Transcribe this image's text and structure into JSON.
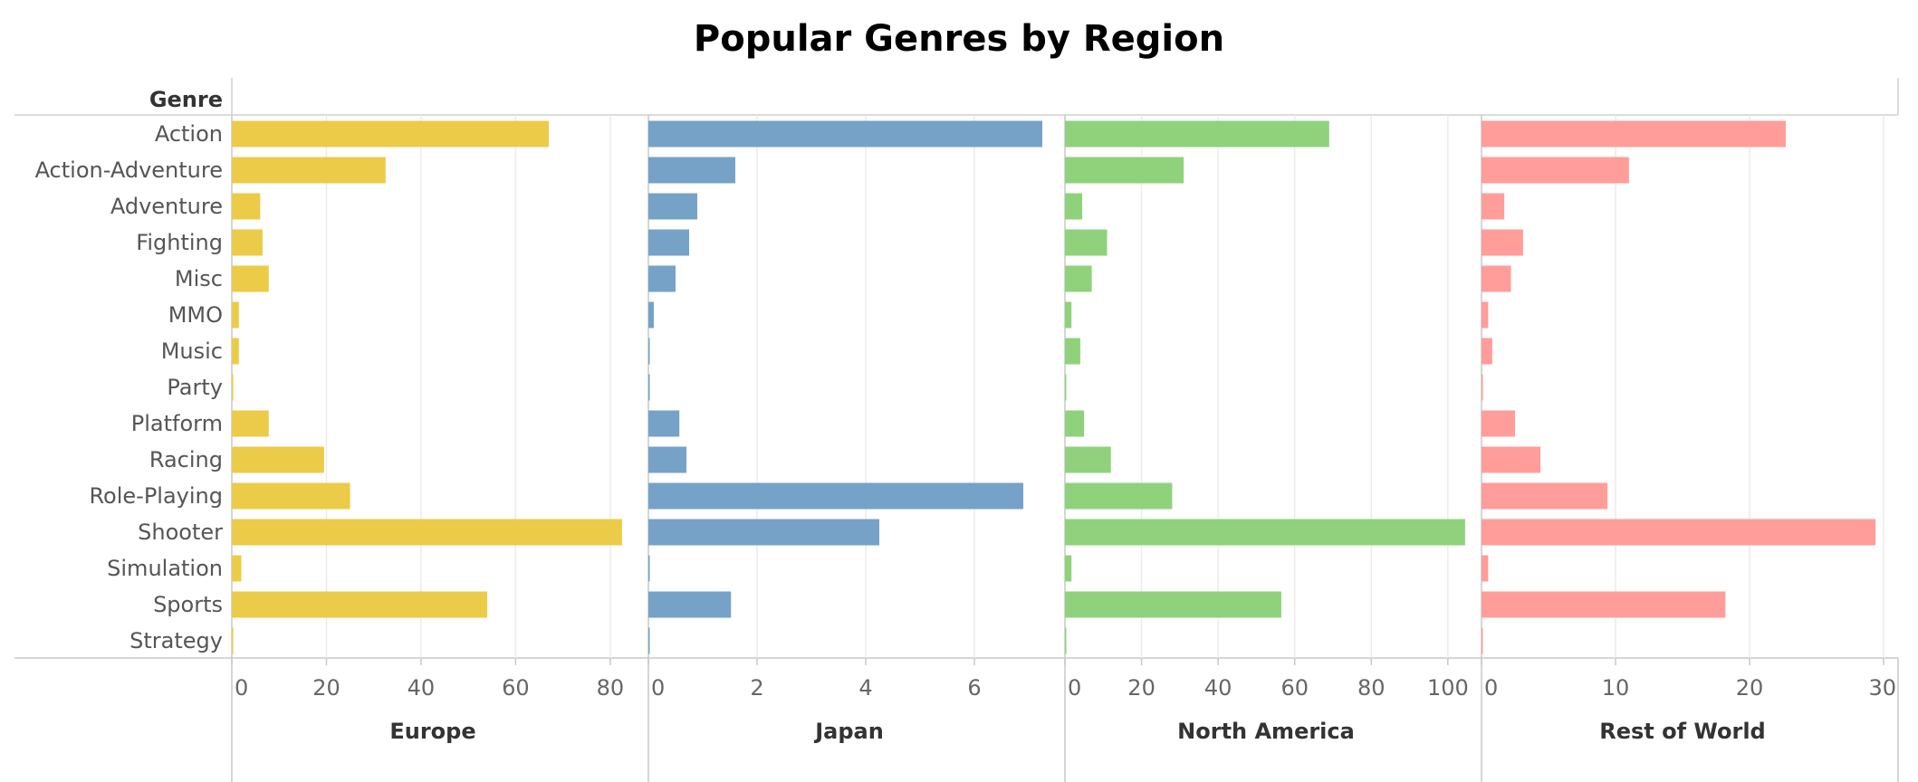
{
  "chart_data": {
    "type": "bar",
    "orientation": "horizontal",
    "title": "Popular Genres by Region",
    "row_header": "Genre",
    "categories": [
      "Action",
      "Action-Adventure",
      "Adventure",
      "Fighting",
      "Misc",
      "MMO",
      "Music",
      "Party",
      "Platform",
      "Racing",
      "Role-Playing",
      "Shooter",
      "Simulation",
      "Sports",
      "Strategy"
    ],
    "panels": [
      {
        "name": "Europe",
        "color": "#ECCB48",
        "xlim": [
          0,
          85
        ],
        "ticks": [
          0,
          20,
          40,
          60,
          80
        ],
        "values": [
          67,
          32.5,
          6,
          6.5,
          7.8,
          1.5,
          1.5,
          0.3,
          7.8,
          19.5,
          25,
          82.5,
          2,
          54,
          0.3
        ]
      },
      {
        "name": "Japan",
        "color": "#76A2C8",
        "xlim": [
          0,
          7.4
        ],
        "ticks": [
          0,
          2,
          4,
          6
        ],
        "values": [
          7.25,
          1.6,
          0.9,
          0.75,
          0.5,
          0.1,
          0.02,
          0.02,
          0.57,
          0.7,
          6.9,
          4.25,
          0.02,
          1.52,
          0.02
        ]
      },
      {
        "name": "North America",
        "color": "#8FD27B",
        "xlim": [
          0,
          105
        ],
        "ticks": [
          0,
          20,
          40,
          60,
          80,
          100
        ],
        "values": [
          69,
          31,
          4.5,
          11,
          7,
          1.7,
          4,
          0.2,
          5,
          12,
          28,
          104.5,
          1.7,
          56.5,
          0.2
        ]
      },
      {
        "name": "Rest of World",
        "color": "#FF9D9A",
        "xlim": [
          0,
          30
        ],
        "ticks": [
          0,
          10,
          20,
          30
        ],
        "values": [
          22.7,
          11,
          1.7,
          3.1,
          2.2,
          0.5,
          0.8,
          0.1,
          2.5,
          4.4,
          9.4,
          29.4,
          0.5,
          18.2,
          0.1
        ]
      }
    ],
    "grid": true,
    "legend": "none"
  }
}
